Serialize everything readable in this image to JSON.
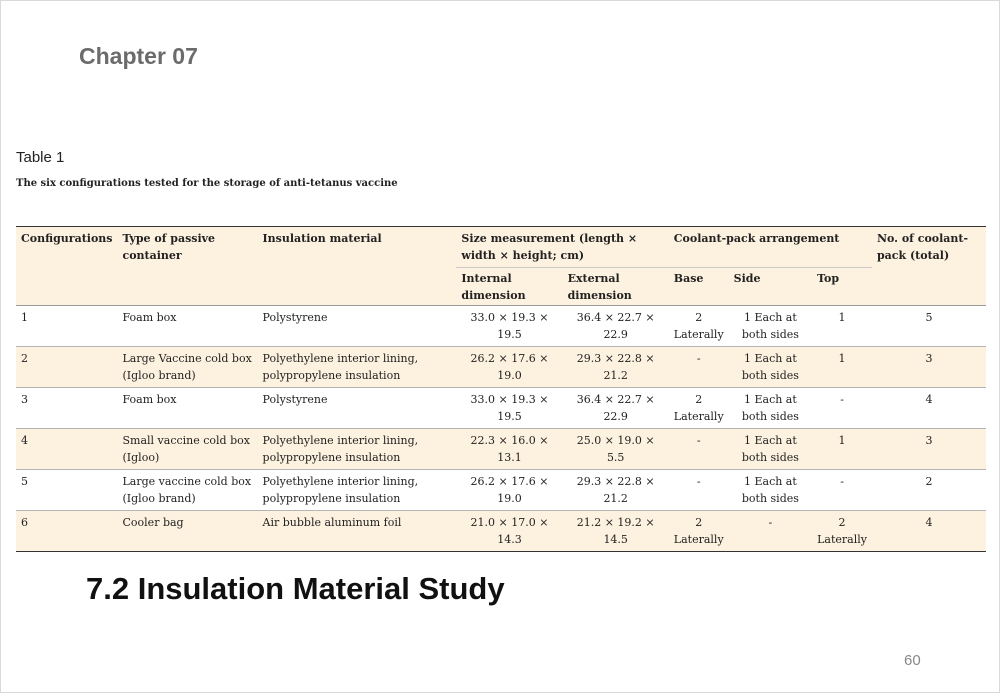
{
  "page": {
    "chapter": "Chapter 07",
    "table_label": "Table 1",
    "table_caption": "The six configurations tested for the storage of anti-tetanus vaccine",
    "section_heading": "7.2 Insulation Material Study",
    "page_number": "60"
  },
  "table": {
    "headers": {
      "configurations": "Configurations",
      "container": "Type of passive container",
      "insulation": "Insulation material",
      "size": "Size measurement (length × width × height; cm)",
      "coolant": "Coolant-pack arrangement",
      "count": "No. of coolant- pack (total)",
      "internal": "Internal dimension",
      "external": "External dimension",
      "base": "Base",
      "side": "Side",
      "top": "Top"
    },
    "rows": [
      {
        "config": "1",
        "container": "Foam box",
        "insulation": "Polystyrene",
        "internal": "33.0 × 19.3 × 19.5",
        "external": "36.4 × 22.7 × 22.9",
        "base": "2 Laterally",
        "side": "1 Each at both sides",
        "top": "1",
        "count": "5"
      },
      {
        "config": "2",
        "container": "Large Vaccine cold box (Igloo brand)",
        "insulation": "Polyethylene interior lining, polypropylene insulation",
        "internal": "26.2 × 17.6 × 19.0",
        "external": "29.3 × 22.8 × 21.2",
        "base": "-",
        "side": "1 Each at both sides",
        "top": "1",
        "count": "3"
      },
      {
        "config": "3",
        "container": "Foam box",
        "insulation": "Polystyrene",
        "internal": "33.0 × 19.3 × 19.5",
        "external": "36.4 × 22.7 × 22.9",
        "base": "2 Laterally",
        "side": "1 Each at both sides",
        "top": "-",
        "count": "4"
      },
      {
        "config": "4",
        "container": "Small vaccine cold box (Igloo)",
        "insulation": "Polyethylene interior lining, polypropylene insulation",
        "internal": "22.3 × 16.0 × 13.1",
        "external": "25.0 × 19.0 × 5.5",
        "base": "-",
        "side": "1 Each at both sides",
        "top": "1",
        "count": "3"
      },
      {
        "config": "5",
        "container": "Large vaccine cold box (Igloo brand)",
        "insulation": "Polyethylene interior lining, polypropylene insulation",
        "internal": "26.2 × 17.6 × 19.0",
        "external": "29.3 × 22.8 × 21.2",
        "base": "-",
        "side": "1 Each at both sides",
        "top": "-",
        "count": "2"
      },
      {
        "config": "6",
        "container": "Cooler bag",
        "insulation": "Air bubble aluminum foil",
        "internal": "21.0 × 17.0 × 14.3",
        "external": "21.2 × 19.2 × 14.5",
        "base": "2 Laterally",
        "side": "-",
        "top": "2 Laterally",
        "count": "4"
      }
    ]
  }
}
